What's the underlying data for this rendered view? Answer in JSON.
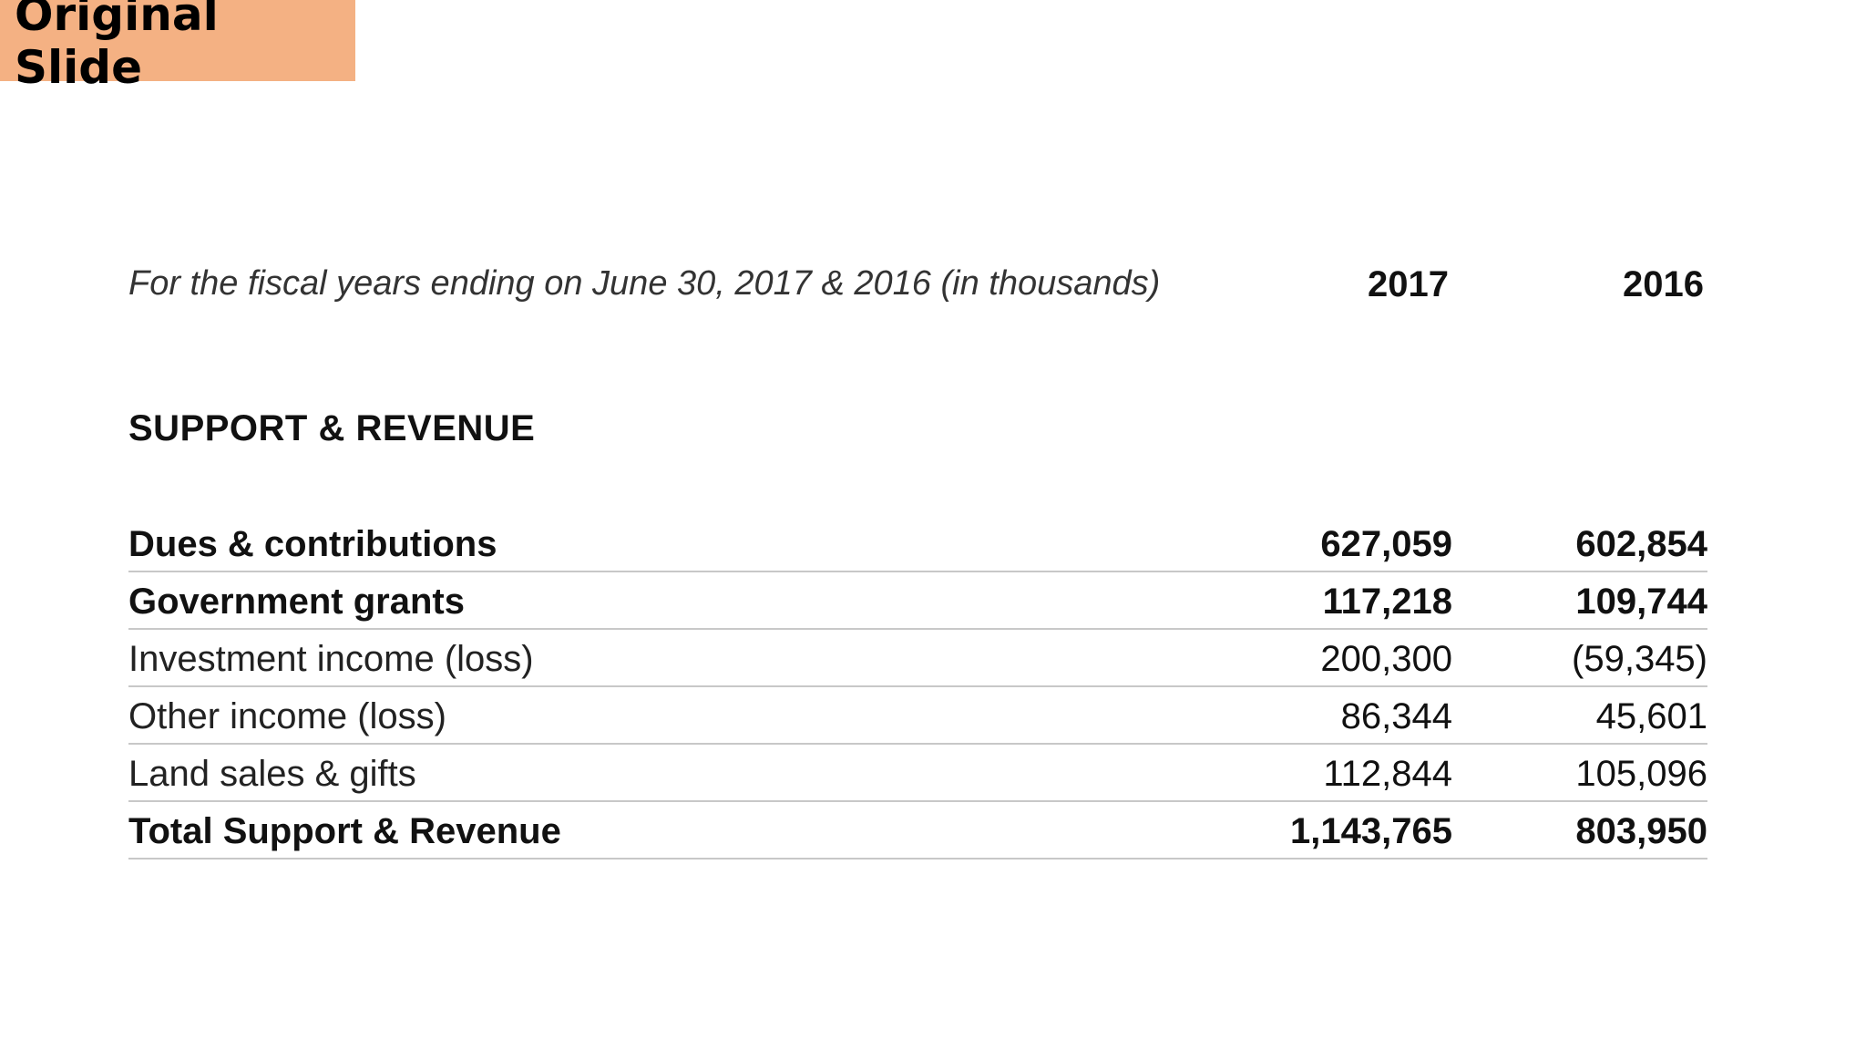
{
  "badge": {
    "label": "Original Slide"
  },
  "header": {
    "subtitle": "For the fiscal years ending on June 30, 2017 & 2016 (in thousands)",
    "years": [
      "2017",
      "2016"
    ]
  },
  "section": {
    "title": "SUPPORT & REVENUE"
  },
  "rows": [
    {
      "label": "Dues & contributions",
      "v2017": "627,059",
      "v2016": "602,854"
    },
    {
      "label": "Government grants",
      "v2017": "117,218",
      "v2016": "109,744"
    },
    {
      "label": "Investment income (loss)",
      "v2017": "200,300",
      "v2016": "(59,345)"
    },
    {
      "label": "Other income (loss)",
      "v2017": "86,344",
      "v2016": "45,601"
    },
    {
      "label": "Land sales & gifts",
      "v2017": "112,844",
      "v2016": "105,096"
    },
    {
      "label": "Total Support & Revenue",
      "v2017": "1,143,765",
      "v2016": "803,950"
    }
  ]
}
